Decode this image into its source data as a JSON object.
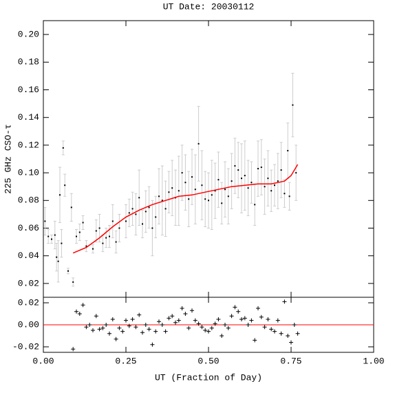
{
  "chart_data": [
    {
      "type": "errorbar",
      "title": "UT Date: 20030112",
      "ylabel": "225 GHz CSO-τ",
      "x": [
        0.005,
        0.015,
        0.025,
        0.035,
        0.04,
        0.045,
        0.05,
        0.055,
        0.06,
        0.065,
        0.075,
        0.085,
        0.09,
        0.1,
        0.11,
        0.12,
        0.13,
        0.15,
        0.16,
        0.17,
        0.18,
        0.19,
        0.2,
        0.21,
        0.22,
        0.23,
        0.25,
        0.26,
        0.27,
        0.28,
        0.29,
        0.3,
        0.31,
        0.32,
        0.33,
        0.34,
        0.35,
        0.36,
        0.37,
        0.38,
        0.39,
        0.4,
        0.41,
        0.42,
        0.43,
        0.44,
        0.45,
        0.46,
        0.47,
        0.48,
        0.49,
        0.5,
        0.51,
        0.52,
        0.53,
        0.54,
        0.55,
        0.56,
        0.57,
        0.58,
        0.59,
        0.6,
        0.61,
        0.62,
        0.63,
        0.64,
        0.65,
        0.66,
        0.67,
        0.68,
        0.69,
        0.7,
        0.71,
        0.72,
        0.73,
        0.74,
        0.745,
        0.755,
        0.765
      ],
      "values": [
        0.065,
        0.054,
        0.052,
        0.055,
        0.039,
        0.036,
        0.084,
        0.049,
        0.118,
        0.091,
        0.029,
        0.075,
        0.021,
        0.054,
        0.057,
        0.064,
        0.047,
        0.045,
        0.058,
        0.06,
        0.049,
        0.053,
        0.054,
        0.065,
        0.05,
        0.06,
        0.065,
        0.071,
        0.074,
        0.07,
        0.082,
        0.063,
        0.072,
        0.075,
        0.06,
        0.068,
        0.083,
        0.08,
        0.074,
        0.086,
        0.089,
        0.082,
        0.087,
        0.1,
        0.093,
        0.081,
        0.097,
        0.088,
        0.121,
        0.091,
        0.081,
        0.08,
        0.084,
        0.087,
        0.095,
        0.078,
        0.088,
        0.083,
        0.094,
        0.105,
        0.102,
        0.096,
        0.098,
        0.089,
        0.093,
        0.077,
        0.103,
        0.104,
        0.09,
        0.096,
        0.087,
        0.091,
        0.094,
        0.102,
        0.085,
        0.116,
        0.083,
        0.149,
        0.1
      ],
      "errors": [
        0.01,
        0.005,
        0.003,
        0.01,
        0.01,
        0.015,
        0.02,
        0.01,
        0.005,
        0.008,
        0.002,
        0.01,
        0.003,
        0.005,
        0.006,
        0.005,
        0.004,
        0.003,
        0.008,
        0.01,
        0.006,
        0.007,
        0.008,
        0.012,
        0.008,
        0.01,
        0.012,
        0.01,
        0.012,
        0.015,
        0.02,
        0.01,
        0.015,
        0.015,
        0.02,
        0.015,
        0.02,
        0.025,
        0.02,
        0.015,
        0.02,
        0.02,
        0.025,
        0.02,
        0.02,
        0.02,
        0.02,
        0.025,
        0.027,
        0.025,
        0.02,
        0.02,
        0.025,
        0.02,
        0.02,
        0.015,
        0.02,
        0.02,
        0.02,
        0.02,
        0.02,
        0.025,
        0.025,
        0.02,
        0.015,
        0.015,
        0.02,
        0.02,
        0.02,
        0.02,
        0.015,
        0.015,
        0.02,
        0.02,
        0.01,
        0.02,
        0.01,
        0.023,
        0.02
      ],
      "color": "#000000",
      "error_color": "#cccccc",
      "fit_x": [
        0.09,
        0.13,
        0.17,
        0.21,
        0.25,
        0.29,
        0.33,
        0.37,
        0.41,
        0.45,
        0.49,
        0.53,
        0.57,
        0.61,
        0.65,
        0.69,
        0.73,
        0.75,
        0.77
      ],
      "fit_values": [
        0.042,
        0.046,
        0.053,
        0.061,
        0.068,
        0.073,
        0.077,
        0.08,
        0.083,
        0.084,
        0.086,
        0.088,
        0.09,
        0.091,
        0.092,
        0.092,
        0.094,
        0.098,
        0.106
      ],
      "fit_color": "#ff0000",
      "xlim": [
        0,
        1
      ],
      "ylim": [
        0.01,
        0.21
      ],
      "yticks": [
        0.02,
        0.04,
        0.06,
        0.08,
        {
          "value": 0.1,
          "label": "0.10"
        },
        {
          "value": 0.12,
          "label": "0.12"
        },
        {
          "value": 0.14,
          "label": "0.14"
        },
        {
          "value": 0.16,
          "label": "0.16"
        },
        {
          "value": 0.18,
          "label": "0.18"
        },
        {
          "value": 0.2,
          "label": "0.20"
        }
      ]
    },
    {
      "type": "residual",
      "xlabel": "UT (Fraction of Day)",
      "x": [
        0.09,
        0.1,
        0.11,
        0.12,
        0.13,
        0.14,
        0.15,
        0.16,
        0.17,
        0.18,
        0.19,
        0.2,
        0.21,
        0.22,
        0.23,
        0.24,
        0.25,
        0.26,
        0.27,
        0.28,
        0.29,
        0.3,
        0.31,
        0.32,
        0.33,
        0.34,
        0.35,
        0.36,
        0.37,
        0.38,
        0.39,
        0.4,
        0.41,
        0.42,
        0.43,
        0.44,
        0.45,
        0.46,
        0.47,
        0.48,
        0.49,
        0.5,
        0.51,
        0.52,
        0.53,
        0.54,
        0.55,
        0.56,
        0.57,
        0.58,
        0.59,
        0.6,
        0.61,
        0.62,
        0.63,
        0.64,
        0.65,
        0.66,
        0.67,
        0.68,
        0.69,
        0.7,
        0.71,
        0.72,
        0.73,
        0.74,
        0.75,
        0.76,
        0.77
      ],
      "values": [
        -0.022,
        0.012,
        0.01,
        0.018,
        -0.002,
        0.0,
        -0.005,
        0.008,
        -0.004,
        -0.003,
        0.0,
        -0.008,
        0.005,
        -0.013,
        -0.003,
        -0.006,
        0.004,
        -0.001,
        0.005,
        -0.002,
        0.009,
        -0.007,
        0.0,
        -0.004,
        -0.018,
        -0.006,
        0.003,
        0.0,
        -0.006,
        0.006,
        0.008,
        0.002,
        0.004,
        0.015,
        0.01,
        -0.003,
        0.013,
        0.004,
        0.001,
        -0.002,
        -0.005,
        -0.006,
        -0.003,
        0.001,
        0.005,
        -0.01,
        0.0,
        -0.003,
        0.008,
        0.016,
        0.012,
        0.005,
        0.006,
        0.0,
        0.004,
        -0.014,
        0.015,
        0.007,
        -0.002,
        0.005,
        -0.004,
        -0.006,
        0.004,
        -0.008,
        0.021,
        -0.01,
        -0.016,
        0.0,
        -0.008
      ],
      "color": "#000000",
      "zero_color": "#ff0000",
      "xlim": [
        0,
        1
      ],
      "ylim": [
        -0.025,
        0.025
      ],
      "yticks": [
        -0.02,
        {
          "value": 0,
          "label": "0.00"
        },
        0.02
      ],
      "xticks": [
        {
          "value": 0,
          "label": "0.00"
        },
        0.25,
        {
          "value": 0.5,
          "label": "0.50"
        },
        0.75,
        {
          "value": 1,
          "label": "1.00"
        }
      ]
    }
  ]
}
